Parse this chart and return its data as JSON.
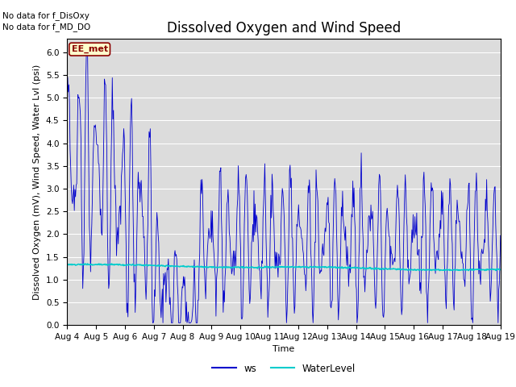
{
  "title": "Dissolved Oxygen and Wind Speed",
  "ylabel": "Dissolved Oxygen (mV), Wind Speed, Water Lvl (psi)",
  "xlabel": "Time",
  "no_data_text1": "No data for f_DisOxy",
  "no_data_text2": "No data for f_MD_DO",
  "ee_met_label": "EE_met",
  "ylim": [
    0.0,
    6.3
  ],
  "yticks": [
    0.0,
    0.5,
    1.0,
    1.5,
    2.0,
    2.5,
    3.0,
    3.5,
    4.0,
    4.5,
    5.0,
    5.5,
    6.0
  ],
  "bg_color": "#dcdcdc",
  "ws_color": "#0000cc",
  "wl_color": "#00cccc",
  "legend_ws": "ws",
  "legend_wl": "WaterLevel",
  "title_fontsize": 12,
  "label_fontsize": 8,
  "tick_fontsize": 7.5
}
